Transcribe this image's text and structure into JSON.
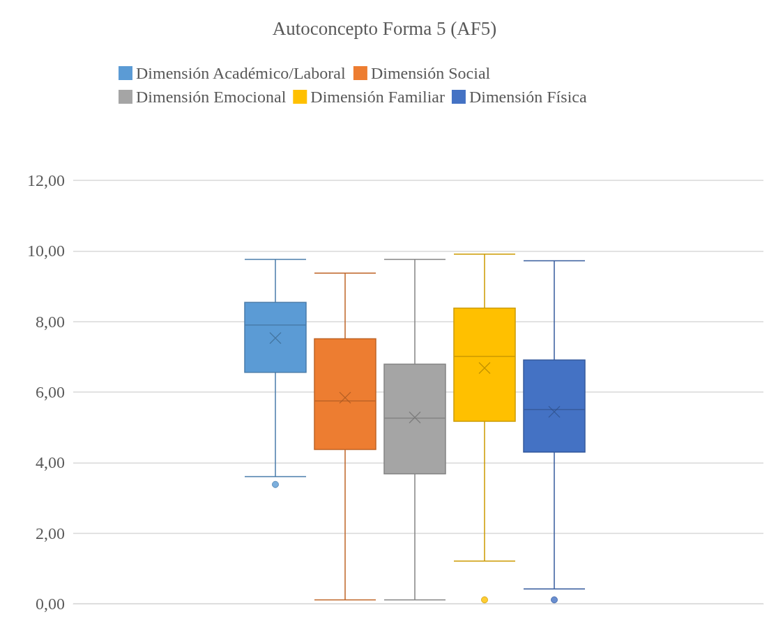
{
  "chart_data": {
    "type": "box",
    "title": "Autoconcepto Forma 5 (AF5)",
    "categories": [
      null
    ],
    "series": [
      {
        "name": "Dimensión Académico/Laboral",
        "color": "#5b9bd5",
        "boxes": [
          {
            "low": 3.6,
            "q1": 6.56,
            "median": 7.9,
            "q3": 8.54,
            "high": 9.76,
            "mean": 7.53,
            "outliers": [
              3.38
            ]
          }
        ]
      },
      {
        "name": "Dimensión Social",
        "color": "#ed7d31",
        "boxes": [
          {
            "low": 0.11,
            "q1": 4.37,
            "median": 5.75,
            "q3": 7.51,
            "high": 9.37,
            "mean": 5.84
          }
        ]
      },
      {
        "name": "Dimensión Emocional",
        "color": "#a5a5a5",
        "boxes": [
          {
            "low": 0.11,
            "q1": 3.68,
            "median": 5.26,
            "q3": 6.79,
            "high": 9.76,
            "mean": 5.28
          }
        ]
      },
      {
        "name": "Dimensión Familiar",
        "color": "#ffc000",
        "boxes": [
          {
            "low": 1.21,
            "q1": 5.17,
            "median": 7.01,
            "q3": 8.38,
            "high": 9.91,
            "mean": 6.68,
            "outliers": [
              0.11
            ]
          }
        ]
      },
      {
        "name": "Dimensión Física",
        "color": "#4472c4",
        "boxes": [
          {
            "low": 0.42,
            "q1": 4.3,
            "median": 5.5,
            "q3": 6.91,
            "high": 9.72,
            "mean": 5.44,
            "outliers": [
              0.11
            ]
          }
        ]
      }
    ],
    "ylim": [
      0,
      12
    ],
    "yticks": [
      {
        "value": 0,
        "label": "0,00"
      },
      {
        "value": 2,
        "label": "2,00"
      },
      {
        "value": 4,
        "label": "4,00"
      },
      {
        "value": 6,
        "label": "6,00"
      },
      {
        "value": 8,
        "label": "8,00"
      },
      {
        "value": 10,
        "label": "10,00"
      },
      {
        "value": 12,
        "label": "12,00"
      }
    ],
    "grid": "y",
    "legend": "top",
    "marker": "cross"
  }
}
